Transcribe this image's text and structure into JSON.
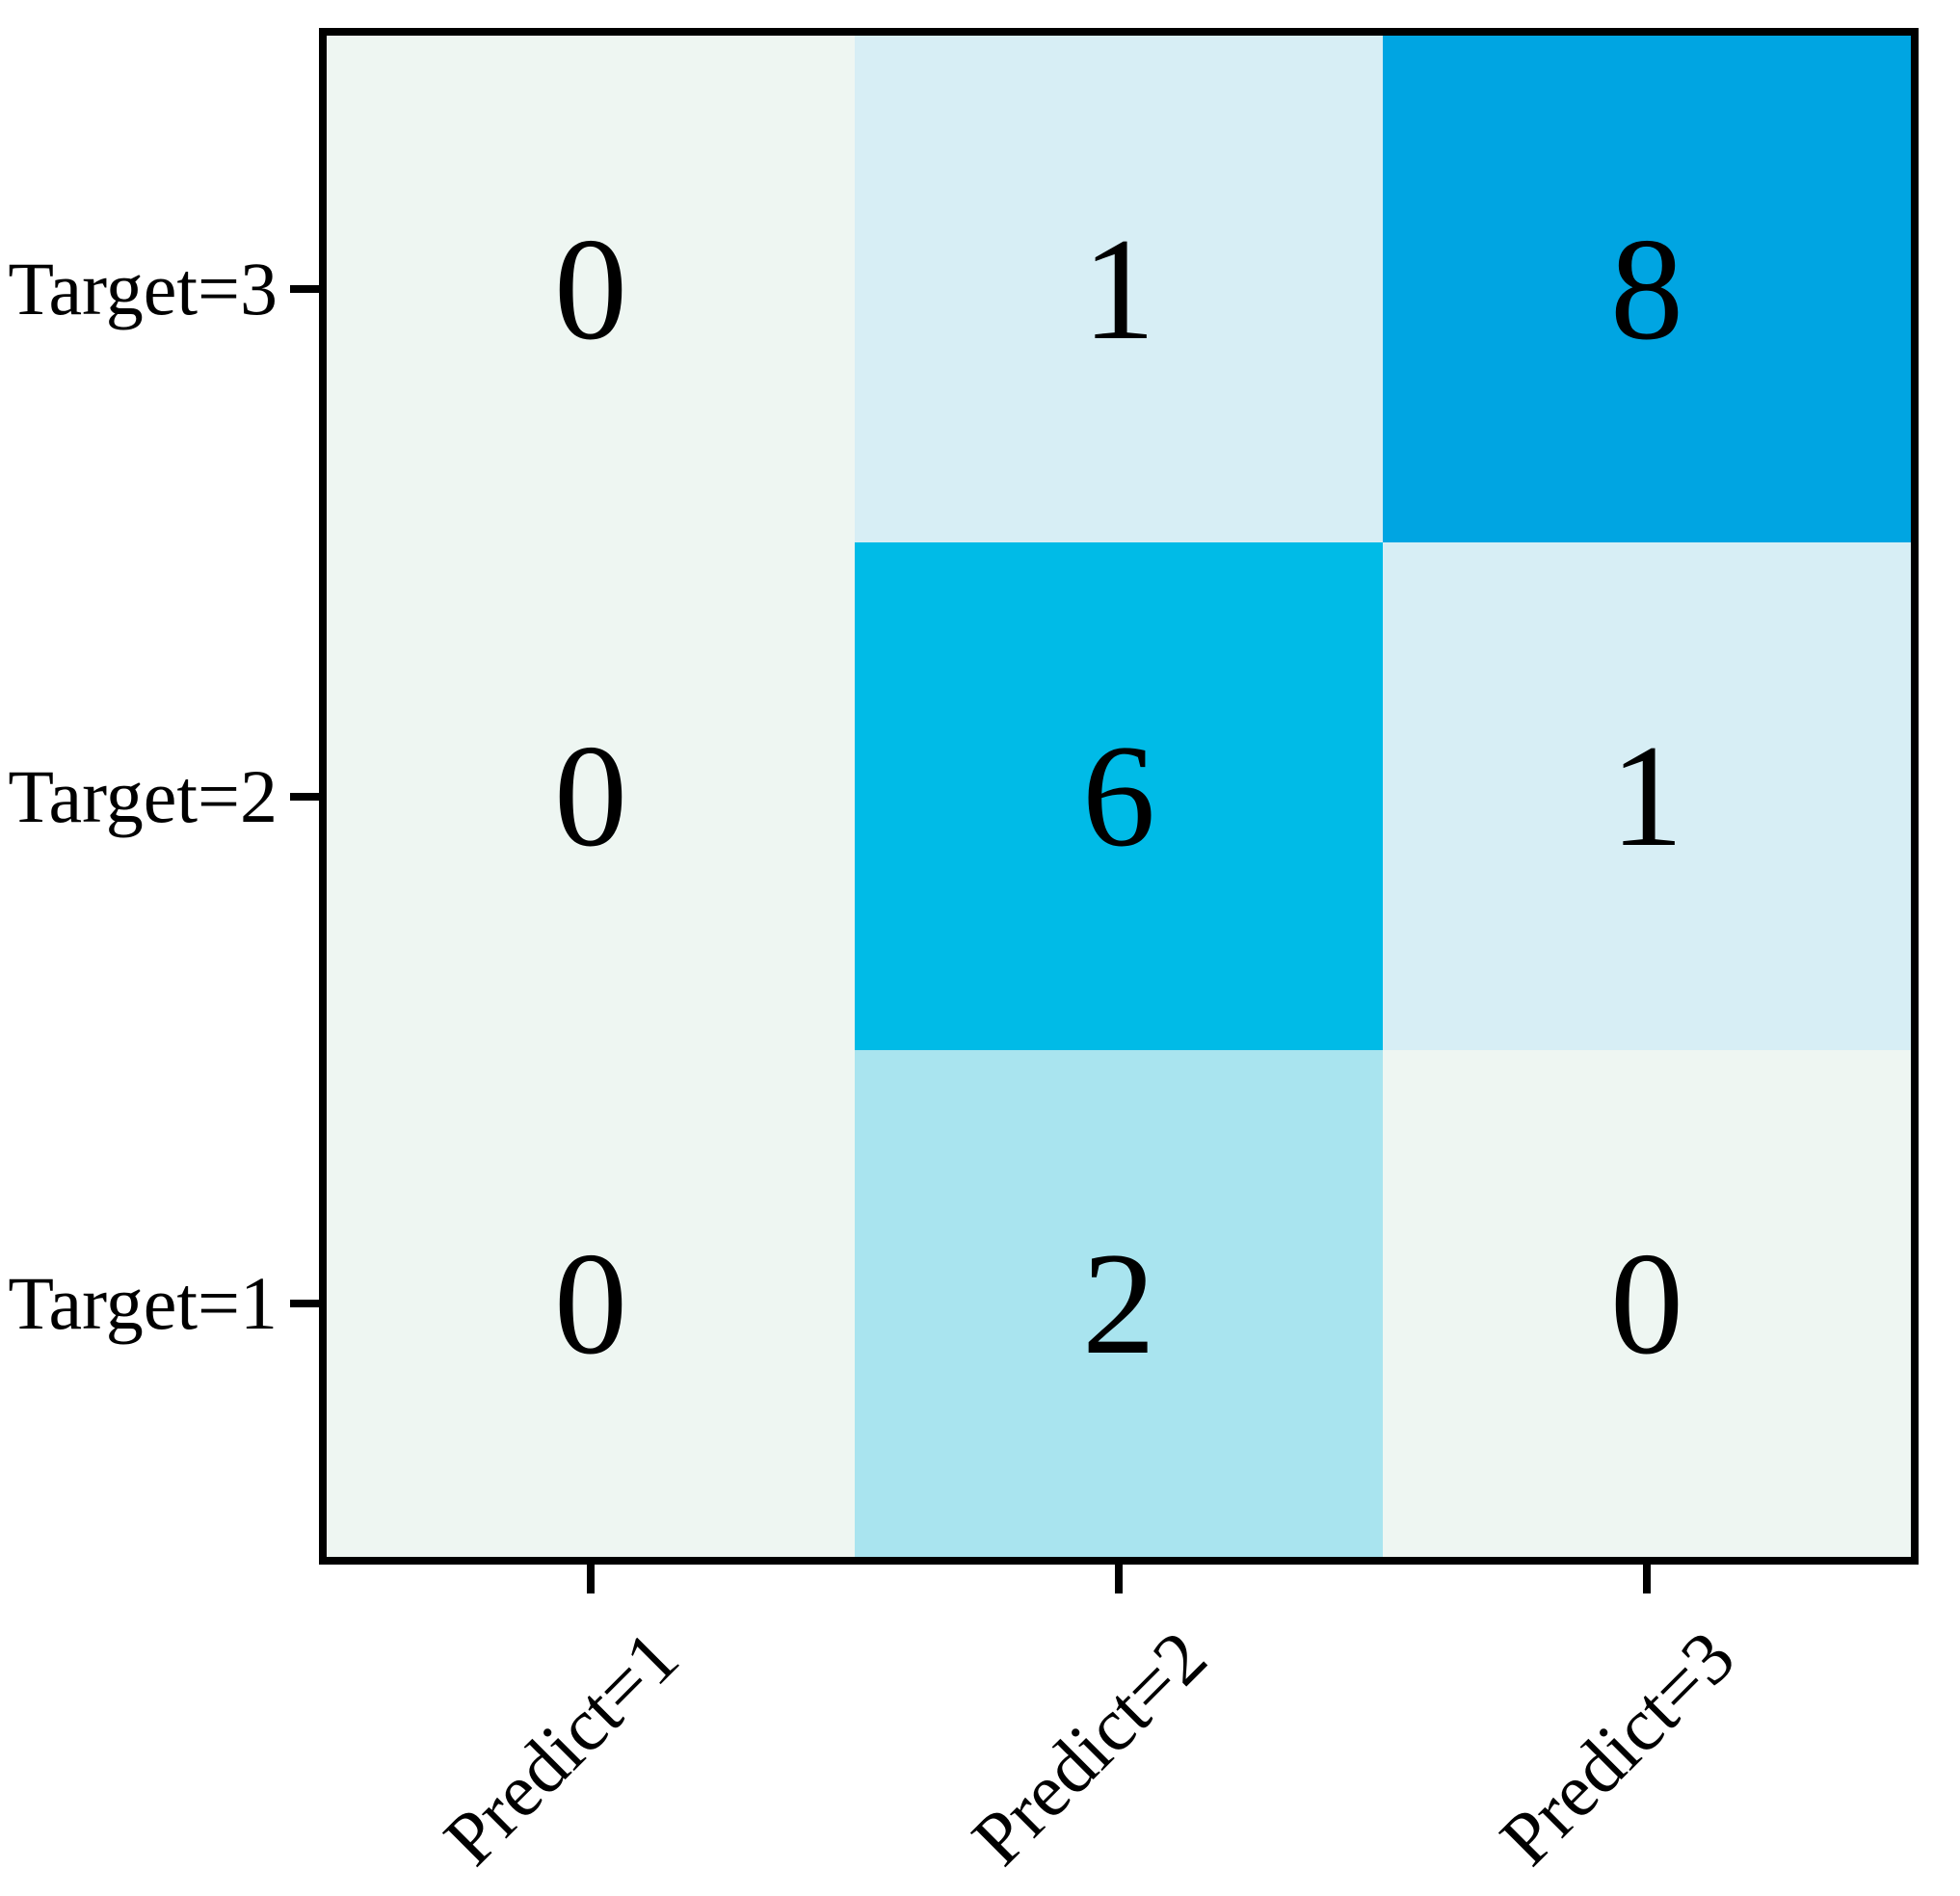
{
  "chart_data": {
    "type": "heatmap",
    "title": "",
    "subtitle": "",
    "legend": "none",
    "grid": "off",
    "x_categories": [
      "Predict=1",
      "Predict=2",
      "Predict=3"
    ],
    "y_categories_top_to_bottom": [
      "Target=3",
      "Target=2",
      "Target=1"
    ],
    "matrix_rows_top_to_bottom": [
      [
        0,
        1,
        8
      ],
      [
        0,
        6,
        1
      ],
      [
        0,
        2,
        0
      ]
    ],
    "value_range": [
      0,
      8
    ],
    "cell_colors_by_value": {
      "0": "#eef6f2",
      "1": "#d7eef5",
      "2": "#a9e4ef",
      "6": "#00bbe7",
      "8": "#00a5e2"
    },
    "colormap_note": "pale green-white at 0 increasing to saturated blue at 8",
    "spine_color": "#000000",
    "text_color": "#000000",
    "background_color": "#ffffff"
  }
}
